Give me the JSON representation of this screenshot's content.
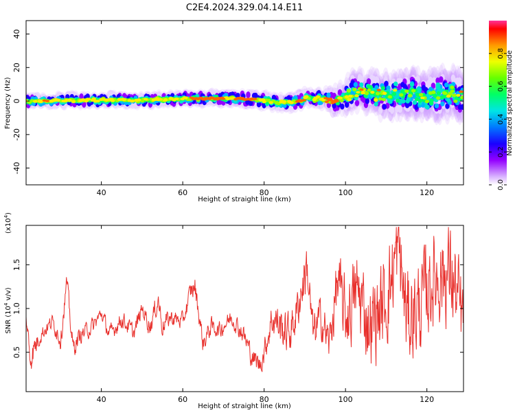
{
  "chart_data": [
    {
      "type": "heatmap",
      "title": "C2E4.2024.329.04.14.E11",
      "xlabel": "Height of straight line (km)",
      "ylabel": "Frequency (Hz)",
      "xlim": [
        21.5,
        129
      ],
      "ylim": [
        -50,
        48
      ],
      "xticks": [
        "40",
        "60",
        "80",
        "100",
        "120"
      ],
      "yticks": [
        "40",
        "20",
        "0",
        "-20",
        "-40"
      ],
      "colorbar": {
        "label": "Normalized spectral amplitude",
        "range": [
          0,
          1
        ],
        "ticks": [
          "0.8",
          "0.6",
          "0.4",
          "0.2",
          "0.0"
        ]
      },
      "band_center_hz": [
        [
          22,
          0
        ],
        [
          35,
          0.5
        ],
        [
          50,
          0.5
        ],
        [
          62,
          1.5
        ],
        [
          72,
          1.5
        ],
        [
          78,
          1
        ],
        [
          83,
          -1
        ],
        [
          87,
          -0.5
        ],
        [
          92,
          2
        ],
        [
          98,
          0
        ],
        [
          101,
          4
        ],
        [
          105,
          5
        ],
        [
          110,
          3
        ],
        [
          115,
          5
        ],
        [
          120,
          2
        ],
        [
          125,
          4
        ],
        [
          129,
          3
        ]
      ],
      "band_halfwidth_hz": [
        [
          22,
          3
        ],
        [
          60,
          3
        ],
        [
          80,
          3.5
        ],
        [
          95,
          4
        ],
        [
          100,
          7
        ],
        [
          110,
          8
        ],
        [
          129,
          10
        ]
      ]
    },
    {
      "type": "line",
      "title": "",
      "xlabel": "Height of straight line (km)",
      "ylabel": "SNR (10^4 v/v)",
      "y_multiplier": "(x10^4)",
      "xlim": [
        21.5,
        129
      ],
      "ylim": [
        0.05,
        1.95
      ],
      "xticks": [
        "40",
        "60",
        "80",
        "100",
        "120"
      ],
      "yticks": [
        "1.5",
        "1.0",
        "0.5"
      ],
      "color": "#e8302c",
      "envelope": {
        "x": [
          21.5,
          22.5,
          25,
          28,
          30,
          31.5,
          33,
          35,
          38,
          40,
          42,
          45,
          48,
          50,
          52,
          54,
          55,
          57,
          60,
          62,
          63,
          65,
          67,
          69,
          72,
          75,
          77,
          79,
          80,
          82,
          84,
          86,
          88,
          90.5,
          92,
          94,
          96,
          98,
          100,
          103,
          106,
          110,
          113,
          115,
          118,
          121,
          123,
          126,
          129
        ],
        "y": [
          0.9,
          0.45,
          0.7,
          0.85,
          0.65,
          1.3,
          0.55,
          0.7,
          0.8,
          0.95,
          0.7,
          0.88,
          0.72,
          1.0,
          0.8,
          1.1,
          0.8,
          0.9,
          0.85,
          1.2,
          1.25,
          0.6,
          0.8,
          0.75,
          0.9,
          0.7,
          0.45,
          0.35,
          0.5,
          0.9,
          0.8,
          0.7,
          0.95,
          1.5,
          0.7,
          0.9,
          0.6,
          1.3,
          0.9,
          1.2,
          0.8,
          1.1,
          1.7,
          0.9,
          1.0,
          1.3,
          1.4,
          1.4,
          0.8
        ],
        "noise": [
          0.05,
          0.15,
          0.08,
          0.07,
          0.1,
          0.1,
          0.1,
          0.08,
          0.08,
          0.07,
          0.08,
          0.08,
          0.08,
          0.08,
          0.1,
          0.1,
          0.1,
          0.08,
          0.08,
          0.1,
          0.1,
          0.1,
          0.08,
          0.08,
          0.08,
          0.1,
          0.1,
          0.1,
          0.12,
          0.18,
          0.2,
          0.2,
          0.2,
          0.25,
          0.2,
          0.2,
          0.2,
          0.3,
          0.35,
          0.4,
          0.4,
          0.45,
          0.45,
          0.45,
          0.45,
          0.45,
          0.45,
          0.5,
          0.4
        ]
      }
    }
  ]
}
